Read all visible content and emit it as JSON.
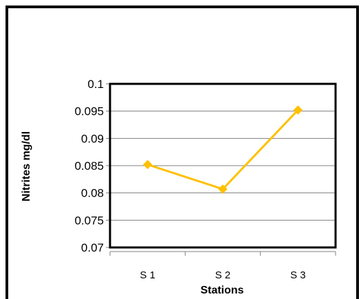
{
  "chart_data": {
    "type": "line",
    "title": "",
    "xlabel": "Stations",
    "ylabel": "Nitrites mg/dl",
    "categories": [
      "S 1",
      "S 2",
      "S 3"
    ],
    "series": [
      {
        "values": [
          0.0852,
          0.0807,
          0.0952
        ],
        "color": "#FFC000"
      }
    ],
    "ylim": [
      0.07,
      0.1
    ],
    "yticks": [
      "0.1",
      "0.095",
      "0.09",
      "0.085",
      "0.08",
      "0.075",
      "0.07"
    ],
    "grid": true,
    "legend": "none",
    "colors": {
      "frame": "#000000",
      "grid": "#808080",
      "axis": "#808080",
      "line": "#FFC000"
    }
  }
}
